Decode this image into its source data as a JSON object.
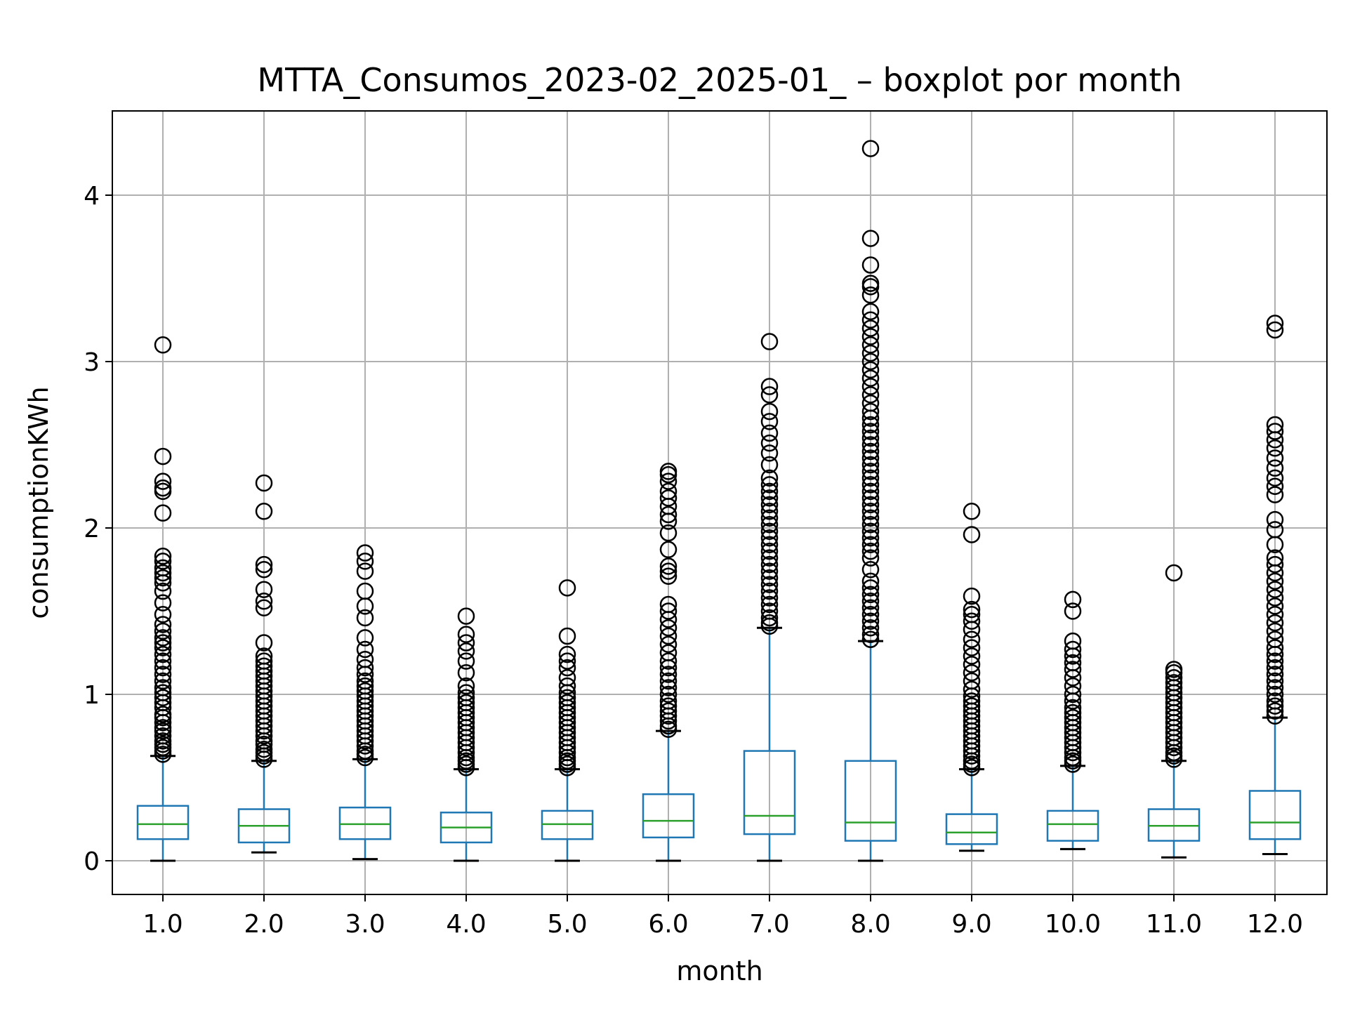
{
  "chart_data": {
    "type": "boxplot",
    "title": "MTTA_Consumos_2023-02_2025-01_ – boxplot por month",
    "xlabel": "month",
    "ylabel": "consumptionKWh",
    "ylim": [
      -0.2,
      4.5
    ],
    "yticks": [
      0,
      1,
      2,
      3,
      4
    ],
    "grid": true,
    "categories": [
      "1.0",
      "2.0",
      "3.0",
      "4.0",
      "5.0",
      "6.0",
      "7.0",
      "8.0",
      "9.0",
      "10.0",
      "11.0",
      "12.0"
    ],
    "boxes": [
      {
        "whislo": 0.0,
        "q1": 0.13,
        "med": 0.22,
        "q3": 0.33,
        "whishi": 0.63,
        "fliers": [
          0.64,
          0.66,
          0.68,
          0.7,
          0.72,
          0.75,
          0.78,
          0.8,
          0.83,
          0.86,
          0.88,
          0.92,
          0.95,
          0.98,
          1.01,
          1.04,
          1.08,
          1.12,
          1.16,
          1.2,
          1.24,
          1.28,
          1.31,
          1.34,
          1.38,
          1.42,
          1.48,
          1.55,
          1.62,
          1.67,
          1.7,
          1.73,
          1.76,
          1.8,
          1.83,
          2.09,
          2.22,
          2.24,
          2.28,
          2.43,
          3.1
        ]
      },
      {
        "whislo": 0.05,
        "q1": 0.11,
        "q3": 0.31,
        "med": 0.21,
        "whishi": 0.6,
        "fliers": [
          0.61,
          0.63,
          0.65,
          0.67,
          0.7,
          0.72,
          0.75,
          0.78,
          0.81,
          0.84,
          0.87,
          0.9,
          0.93,
          0.96,
          0.99,
          1.02,
          1.05,
          1.08,
          1.11,
          1.14,
          1.17,
          1.2,
          1.23,
          1.31,
          1.52,
          1.56,
          1.63,
          1.75,
          1.78,
          2.1,
          2.27
        ]
      },
      {
        "whislo": 0.01,
        "q1": 0.13,
        "med": 0.22,
        "q3": 0.32,
        "whishi": 0.61,
        "fliers": [
          0.62,
          0.64,
          0.66,
          0.69,
          0.72,
          0.75,
          0.78,
          0.81,
          0.84,
          0.87,
          0.9,
          0.93,
          0.96,
          0.99,
          1.02,
          1.05,
          1.08,
          1.12,
          1.16,
          1.21,
          1.27,
          1.34,
          1.46,
          1.53,
          1.62,
          1.74,
          1.8,
          1.85
        ]
      },
      {
        "whislo": 0.0,
        "q1": 0.11,
        "med": 0.2,
        "q3": 0.29,
        "whishi": 0.55,
        "fliers": [
          0.56,
          0.58,
          0.6,
          0.62,
          0.65,
          0.68,
          0.71,
          0.74,
          0.77,
          0.8,
          0.83,
          0.86,
          0.89,
          0.92,
          0.95,
          0.98,
          1.01,
          1.05,
          1.13,
          1.2,
          1.26,
          1.31,
          1.36,
          1.47
        ]
      },
      {
        "whislo": 0.0,
        "q1": 0.13,
        "med": 0.22,
        "q3": 0.3,
        "whishi": 0.55,
        "fliers": [
          0.56,
          0.58,
          0.6,
          0.62,
          0.65,
          0.68,
          0.71,
          0.74,
          0.77,
          0.8,
          0.83,
          0.86,
          0.89,
          0.92,
          0.95,
          0.98,
          1.01,
          1.05,
          1.1,
          1.16,
          1.2,
          1.24,
          1.35,
          1.64
        ]
      },
      {
        "whislo": 0.0,
        "q1": 0.14,
        "med": 0.24,
        "q3": 0.4,
        "whishi": 0.78,
        "fliers": [
          0.79,
          0.81,
          0.84,
          0.87,
          0.9,
          0.93,
          0.96,
          1.0,
          1.04,
          1.08,
          1.12,
          1.16,
          1.2,
          1.25,
          1.3,
          1.35,
          1.4,
          1.45,
          1.5,
          1.54,
          1.71,
          1.74,
          1.77,
          1.87,
          1.97,
          2.04,
          2.08,
          2.13,
          2.18,
          2.22,
          2.28,
          2.32,
          2.34
        ]
      },
      {
        "whislo": 0.0,
        "q1": 0.16,
        "med": 0.27,
        "q3": 0.66,
        "whishi": 1.4,
        "fliers": [
          1.41,
          1.43,
          1.46,
          1.5,
          1.54,
          1.58,
          1.62,
          1.66,
          1.7,
          1.74,
          1.78,
          1.82,
          1.86,
          1.9,
          1.94,
          1.98,
          2.02,
          2.06,
          2.1,
          2.14,
          2.18,
          2.22,
          2.26,
          2.3,
          2.38,
          2.45,
          2.51,
          2.57,
          2.64,
          2.7,
          2.8,
          2.85,
          3.12
        ]
      },
      {
        "whislo": 0.0,
        "q1": 0.12,
        "med": 0.23,
        "q3": 0.6,
        "whishi": 1.32,
        "fliers": [
          1.33,
          1.36,
          1.4,
          1.44,
          1.48,
          1.52,
          1.56,
          1.6,
          1.64,
          1.68,
          1.75,
          1.82,
          1.86,
          1.9,
          1.94,
          1.98,
          2.02,
          2.06,
          2.1,
          2.14,
          2.18,
          2.22,
          2.26,
          2.3,
          2.34,
          2.38,
          2.42,
          2.46,
          2.5,
          2.54,
          2.58,
          2.62,
          2.66,
          2.7,
          2.75,
          2.8,
          2.85,
          2.9,
          2.95,
          3.0,
          3.05,
          3.1,
          3.15,
          3.2,
          3.25,
          3.3,
          3.4,
          3.45,
          3.47,
          3.58,
          3.74,
          4.28
        ]
      },
      {
        "whislo": 0.06,
        "q1": 0.1,
        "med": 0.17,
        "q3": 0.28,
        "whishi": 0.55,
        "fliers": [
          0.56,
          0.58,
          0.6,
          0.63,
          0.66,
          0.69,
          0.72,
          0.75,
          0.78,
          0.81,
          0.84,
          0.87,
          0.9,
          0.93,
          0.96,
          0.99,
          1.03,
          1.08,
          1.13,
          1.18,
          1.23,
          1.28,
          1.33,
          1.39,
          1.44,
          1.48,
          1.51,
          1.59,
          1.96,
          2.1
        ]
      },
      {
        "whislo": 0.07,
        "q1": 0.12,
        "med": 0.22,
        "q3": 0.3,
        "whishi": 0.57,
        "fliers": [
          0.58,
          0.6,
          0.62,
          0.65,
          0.68,
          0.71,
          0.74,
          0.77,
          0.8,
          0.83,
          0.86,
          0.89,
          0.92,
          0.96,
          1.0,
          1.05,
          1.1,
          1.15,
          1.19,
          1.23,
          1.27,
          1.32,
          1.5,
          1.57
        ]
      },
      {
        "whislo": 0.02,
        "q1": 0.12,
        "med": 0.21,
        "q3": 0.31,
        "whishi": 0.6,
        "fliers": [
          0.61,
          0.63,
          0.65,
          0.68,
          0.71,
          0.74,
          0.77,
          0.8,
          0.83,
          0.86,
          0.89,
          0.92,
          0.95,
          0.98,
          1.01,
          1.04,
          1.07,
          1.1,
          1.13,
          1.15,
          1.73
        ]
      },
      {
        "whislo": 0.04,
        "q1": 0.13,
        "med": 0.23,
        "q3": 0.42,
        "whishi": 0.86,
        "fliers": [
          0.87,
          0.9,
          0.93,
          0.96,
          1.0,
          1.04,
          1.08,
          1.12,
          1.16,
          1.2,
          1.24,
          1.28,
          1.33,
          1.38,
          1.43,
          1.48,
          1.53,
          1.58,
          1.63,
          1.68,
          1.73,
          1.78,
          1.82,
          1.9,
          1.99,
          2.05,
          2.2,
          2.25,
          2.3,
          2.36,
          2.42,
          2.48,
          2.53,
          2.58,
          2.62,
          3.19,
          3.23
        ]
      }
    ]
  }
}
